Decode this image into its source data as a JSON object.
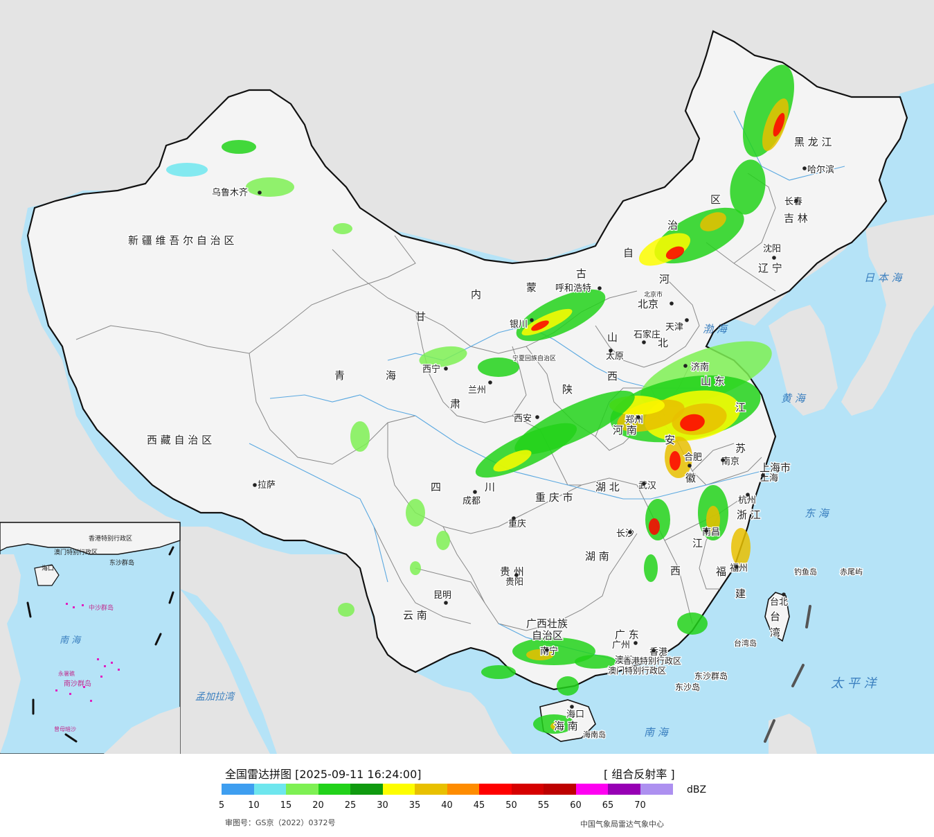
{
  "map": {
    "colors": {
      "sea": "#b5e3f7",
      "foreign_land": "#e4e4e4",
      "china_land": "#f4f4f4",
      "border": "#111111",
      "province_line": "#888888",
      "label": "#222222",
      "sea_label": "#3a7fbf"
    },
    "province_labels": [
      "新 疆 维 吾 尔 自 治 区",
      "西 藏 自 治 区",
      "青",
      "海",
      "甘",
      "肃",
      "内",
      "蒙",
      "古",
      "自",
      "治",
      "区",
      "黑 龙 江",
      "吉 林",
      "辽 宁",
      "河",
      "北",
      "山",
      "西",
      "陕",
      "四",
      "川",
      "重 庆 市",
      "湖 北",
      "湖 南",
      "河 南",
      "山 东",
      "江",
      "苏",
      "安",
      "徽",
      "浙 江",
      "江",
      "西",
      "福",
      "建",
      "贵 州",
      "云 南",
      "广西壮族",
      "自治区",
      "广 东",
      "海 南",
      "上海市",
      "台",
      "湾"
    ],
    "city_labels": [
      "乌鲁木齐",
      "拉萨",
      "西宁",
      "兰州",
      "银川",
      "呼和浩特",
      "北京",
      "北京市",
      "天津",
      "石家庄",
      "太原",
      "西安",
      "郑州",
      "济南",
      "合肥",
      "南京",
      "上海",
      "杭州",
      "武汉",
      "长沙",
      "南昌",
      "福州",
      "台北",
      "成都",
      "重庆",
      "贵阳",
      "昆明",
      "南宁",
      "广州",
      "香港",
      "澳门",
      "海口",
      "沈阳",
      "长春",
      "哈尔滨",
      "宁夏回族自治区"
    ],
    "special_labels": [
      "香港特别行政区",
      "澳门特别行政区",
      "东沙群岛",
      "东沙岛",
      "台湾岛",
      "钓鱼岛",
      "赤尾屿",
      "海南岛"
    ],
    "sea_labels": [
      "渤 海",
      "黄 海",
      "东 海",
      "日 本 海",
      "太 平 洋",
      "南 海",
      "孟加拉湾"
    ],
    "inset_labels": [
      "南 海",
      "海口",
      "中沙群岛",
      "永暑礁",
      "南沙群岛",
      "曾母暗沙",
      "香港特别行政区",
      "澳门特别行政区",
      "东沙群岛"
    ]
  },
  "legend": {
    "title": "全国雷达拼图 [2025-09-11 16:24:00]",
    "product": "[ 组合反射率 ]",
    "unit": "dBZ",
    "colors": [
      "#3e9ef0",
      "#6ee6ee",
      "#7ef053",
      "#22d21a",
      "#0f9a0f",
      "#fdfd00",
      "#e8c000",
      "#fe8c00",
      "#fe0000",
      "#d60000",
      "#bd0000",
      "#fe00f1",
      "#9700b4",
      "#ad90f0"
    ],
    "ticks": [
      "5",
      "10",
      "15",
      "20",
      "25",
      "30",
      "35",
      "40",
      "45",
      "50",
      "55",
      "60",
      "65",
      "70"
    ],
    "review_number": "审图号：GS京（2022）0372号",
    "source": "中国气象局雷达气象中心"
  }
}
